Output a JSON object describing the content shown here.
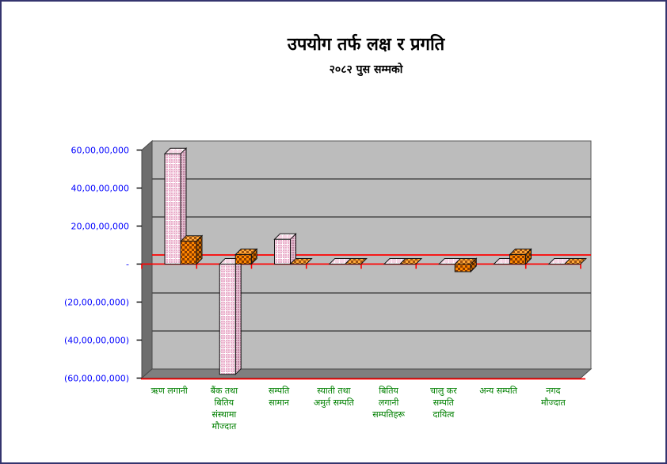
{
  "window": {
    "background": "#ffffff",
    "border_color": "#34346e"
  },
  "chart_data": {
    "type": "bar",
    "projection": "3d-columns",
    "title": "उपयोग तर्फ लक्ष र प्रगति",
    "subtitle": "२०८२ पुस सम्मको",
    "xlabel": "",
    "ylabel": "",
    "ylim": [
      -600000000,
      600000000
    ],
    "y_step": 200000000,
    "grid": true,
    "legend": "none",
    "categories": [
      "ऋण लगानी",
      "बैंक तथा बितिय संस्थामा मौज्दात",
      "सम्पति सामान",
      "स्याती तथा अमुर्त सम्पति",
      "बितिय लगानी सम्पतिहरू",
      "चालु कर सम्पति दायित्व",
      "अन्य सम्पति",
      "नगद मौज्दात"
    ],
    "category_lines": [
      [
        "ऋण लगानी"
      ],
      [
        "बैंक तथा",
        "बितिय",
        "संस्थामा",
        "मौज्दात"
      ],
      [
        "सम्पति",
        "सामान"
      ],
      [
        "स्याती तथा",
        "अमुर्त सम्पति"
      ],
      [
        "बितिय",
        "लगानी",
        "सम्पतिहरू"
      ],
      [
        "चालु कर",
        "सम्पति",
        "दायित्व"
      ],
      [
        "अन्य सम्पति"
      ],
      [
        "नगद",
        "मौज्दात"
      ]
    ],
    "series": [
      {
        "name": "series-1-pink-plaid",
        "values": [
          580000000,
          -580000000,
          130000000,
          0,
          0,
          0,
          0,
          0
        ]
      },
      {
        "name": "series-2-orange-checker",
        "values": [
          120000000,
          50000000,
          0,
          0,
          0,
          -40000000,
          50000000,
          0
        ]
      }
    ],
    "y_axis": {
      "label_color": "#0000ff",
      "ticks": [
        {
          "label": "60,00,00,000",
          "value": 600000000
        },
        {
          "label": "40,00,00,000",
          "value": 400000000
        },
        {
          "label": "20,00,00,000",
          "value": 200000000
        },
        {
          "label": "-",
          "value": 0
        },
        {
          "label": "(20,00,00,000)",
          "value": -200000000
        },
        {
          "label": "(40,00,00,000)",
          "value": -400000000
        },
        {
          "label": "(60,00,00,000)",
          "value": -600000000
        }
      ]
    },
    "x_axis": {
      "label_color": "#008000"
    },
    "colors": {
      "zero_line": "#ff0000",
      "gridline": "#4a4a4a",
      "back_wall": "#bcbcbc",
      "side_wall": "#6e6e6e",
      "floor": "#7f7f7f",
      "bar_edge": "#141414",
      "pink": {
        "front_bg": "#e9aecb",
        "front_line1": "#ffffff",
        "front_line2": "#f6d6e4",
        "top_bg": "#f5d4e3",
        "top_line": "#ffffff",
        "side_bg": "#c188a4",
        "side_line": "#e6c2d4"
      },
      "orange": {
        "front_light": "#ff8800",
        "front_dark": "#8c3c00",
        "top_light": "#ffa838",
        "top_dark": "#a05414",
        "side_light": "#d26e00",
        "side_dark": "#5e2a00"
      }
    }
  }
}
